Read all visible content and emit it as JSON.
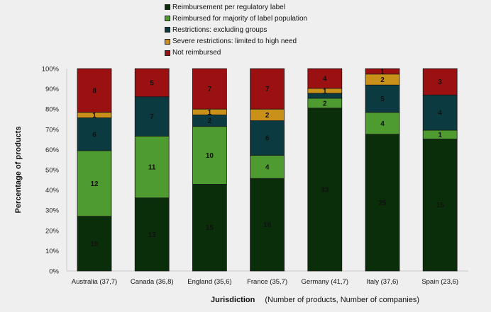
{
  "chart_data": {
    "type": "bar",
    "stacked": true,
    "normalized": true,
    "title": "",
    "xlabel": "Jurisdiction",
    "xlabel_note": "(Number of products, Number of companies)",
    "ylabel": "Percentage of products",
    "ylim": [
      0,
      100
    ],
    "yticks": [
      "0%",
      "10%",
      "20%",
      "30%",
      "40%",
      "50%",
      "60%",
      "70%",
      "80%",
      "90%",
      "100%"
    ],
    "grid": false,
    "legend_position": "top",
    "categories": [
      "Australia (37,7)",
      "Canada  (36,8)",
      "England (35,6)",
      "France (35,7)",
      "Germany (41,7)",
      "Italy  (37,6)",
      "Spain  (23,6)"
    ],
    "series": [
      {
        "name": "Reimbursement per regulatory label",
        "color": "#0a2e0a",
        "values": [
          10,
          13,
          15,
          16,
          33,
          25,
          15
        ],
        "labels": [
          "10",
          "13",
          "15",
          "16",
          "33",
          "25",
          "15"
        ]
      },
      {
        "name": "Reimbursed for majority of label population",
        "color": "#4e9b2f",
        "values": [
          12,
          11,
          10,
          4,
          2,
          4,
          1
        ],
        "labels": [
          "12",
          "11",
          "10",
          "4",
          "2",
          "4",
          "1"
        ]
      },
      {
        "name": "Restrictions: excluding groups",
        "color": "#0b3a40",
        "values": [
          6,
          7,
          2,
          6,
          1,
          5,
          4
        ],
        "labels": [
          "6",
          "7",
          "2",
          "6",
          "",
          "5",
          "4"
        ]
      },
      {
        "name": "Severe restrictions: limited to high need",
        "color": "#c9911a",
        "values": [
          1,
          0,
          1,
          2,
          1,
          2,
          0
        ],
        "labels": [
          "1",
          "",
          "1",
          "2",
          "1",
          "2",
          ""
        ]
      },
      {
        "name": "Not reimbursed",
        "color": "#9b1111",
        "values": [
          8,
          5,
          7,
          7,
          4,
          1,
          3
        ],
        "labels": [
          "8",
          "5",
          "7",
          "7",
          "4",
          "1",
          "3"
        ]
      }
    ]
  }
}
